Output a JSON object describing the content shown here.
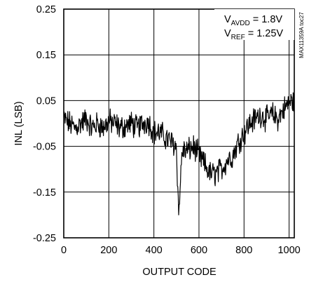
{
  "chart_data": {
    "type": "line",
    "xlabel": "OUTPUT CODE",
    "ylabel": "INL (LSB)",
    "xlim": [
      0,
      1023
    ],
    "ylim": [
      -0.25,
      0.25
    ],
    "x_ticks": [
      0,
      200,
      400,
      600,
      800,
      1000
    ],
    "x_tick_labels": [
      "0",
      "200",
      "400",
      "600",
      "800",
      "1000"
    ],
    "y_ticks": [
      0.25,
      0.15,
      0.05,
      -0.05,
      -0.15,
      -0.25
    ],
    "y_tick_labels": [
      "0.25",
      "0.15",
      "0.05",
      "-0.05",
      "-0.15",
      "-0.25"
    ],
    "grid": true,
    "annotations": {
      "avdd_main": "V",
      "avdd_sub": "AVDD",
      "avdd_value": " = 1.8V",
      "ref_main": "V",
      "ref_sub": "REF",
      "ref_value": " = 1.25V",
      "figure_id": "MAX11359A toc27"
    },
    "series": [
      {
        "color": "#000000",
        "x": [
          0,
          25,
          50,
          75,
          100,
          125,
          150,
          175,
          200,
          225,
          250,
          275,
          300,
          325,
          350,
          375,
          400,
          425,
          450,
          475,
          500,
          510,
          525,
          550,
          575,
          600,
          625,
          650,
          675,
          700,
          725,
          750,
          775,
          800,
          825,
          850,
          875,
          900,
          925,
          950,
          975,
          1000,
          1023
        ],
        "y": [
          0.01,
          0.0,
          -0.01,
          0.0,
          0.01,
          -0.01,
          0.0,
          -0.01,
          0.005,
          0.0,
          -0.01,
          -0.005,
          0.0,
          -0.01,
          0.0,
          0.005,
          -0.02,
          -0.02,
          -0.03,
          -0.04,
          -0.05,
          -0.2,
          -0.06,
          -0.06,
          -0.05,
          -0.07,
          -0.09,
          -0.11,
          -0.11,
          -0.1,
          -0.08,
          -0.07,
          -0.04,
          -0.02,
          0.0,
          0.01,
          0.02,
          0.01,
          0.02,
          0.01,
          0.03,
          0.045,
          0.05
        ]
      }
    ]
  }
}
